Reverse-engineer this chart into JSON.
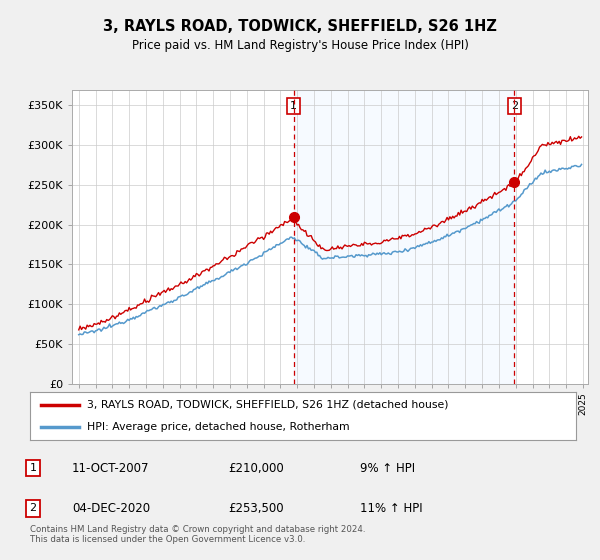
{
  "title": "3, RAYLS ROAD, TODWICK, SHEFFIELD, S26 1HZ",
  "subtitle": "Price paid vs. HM Land Registry's House Price Index (HPI)",
  "ylim": [
    0,
    370000
  ],
  "yticks": [
    0,
    50000,
    100000,
    150000,
    200000,
    250000,
    300000,
    350000
  ],
  "ytick_labels": [
    "£0",
    "£50K",
    "£100K",
    "£150K",
    "£200K",
    "£250K",
    "£300K",
    "£350K"
  ],
  "legend_line1": "3, RAYLS ROAD, TODWICK, SHEFFIELD, S26 1HZ (detached house)",
  "legend_line2": "HPI: Average price, detached house, Rotherham",
  "sale1_date": "11-OCT-2007",
  "sale1_price": "£210,000",
  "sale1_hpi": "9% ↑ HPI",
  "sale2_date": "04-DEC-2020",
  "sale2_price": "£253,500",
  "sale2_hpi": "11% ↑ HPI",
  "footer": "Contains HM Land Registry data © Crown copyright and database right 2024.\nThis data is licensed under the Open Government Licence v3.0.",
  "line_color_sales": "#cc0000",
  "line_color_hpi": "#5599cc",
  "shade_color": "#ddeeff",
  "background_color": "#f0f0f0",
  "plot_bg_color": "#ffffff",
  "grid_color": "#cccccc",
  "sale1_year": 2007.79,
  "sale2_year": 2020.92,
  "sale1_price_val": 210000,
  "sale2_price_val": 253500
}
